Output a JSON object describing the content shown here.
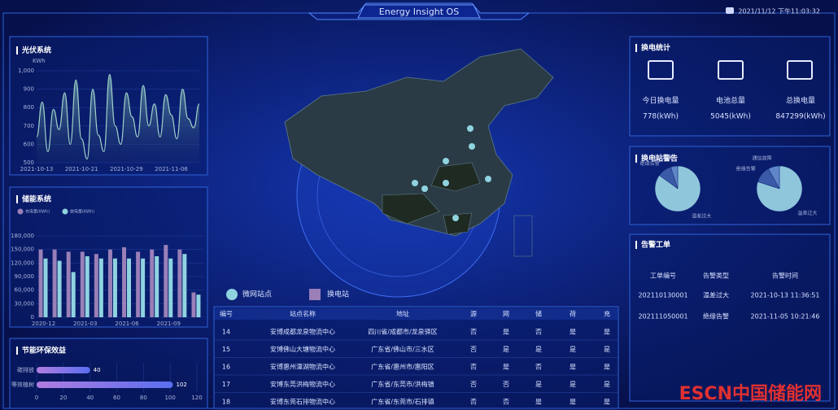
{
  "header": {
    "title": "Energy Insight OS",
    "datetime": "2021/11/12 下午11:03:32"
  },
  "pv_panel": {
    "title": "光伏系统",
    "chart": {
      "type": "line",
      "y_label": "KWh",
      "color": "#9fd0c8",
      "categories": [
        "2021-10-13",
        null,
        null,
        null,
        null,
        null,
        null,
        null,
        "2021-10-21",
        null,
        null,
        null,
        null,
        null,
        null,
        null,
        "2021-10-29",
        null,
        null,
        null,
        null,
        null,
        null,
        null,
        "2021-11-06",
        null,
        null,
        null,
        null,
        null
      ],
      "values": [
        640,
        830,
        560,
        790,
        680,
        880,
        600,
        950,
        630,
        520,
        900,
        650,
        560,
        980,
        700,
        600,
        880,
        750,
        640,
        920,
        700,
        820,
        640,
        870,
        760,
        630,
        900,
        740,
        690,
        820
      ],
      "ylim": [
        500,
        1000
      ],
      "yticks": [
        500,
        600,
        700,
        800,
        900,
        {
          "value": 1000,
          "label": "1,000"
        }
      ]
    }
  },
  "storage_panel": {
    "title": "储能系统",
    "chart": {
      "type": "bar",
      "categories": [
        "2020-12",
        null,
        null,
        "2021-03",
        null,
        null,
        "2021-06",
        null,
        null,
        "2021-09",
        null,
        null
      ],
      "series": [
        {
          "name": "充电量(KWh)",
          "color": "#9a7fb8",
          "values": [
            150000,
            150000,
            145000,
            145000,
            140000,
            150000,
            155000,
            145000,
            150000,
            160000,
            150000,
            55000
          ]
        },
        {
          "name": "放电量(KWh)",
          "color": "#8fd3e0",
          "values": [
            130000,
            125000,
            100000,
            135000,
            130000,
            130000,
            130000,
            130000,
            135000,
            130000,
            140000,
            50000
          ]
        }
      ],
      "ylim": [
        0,
        180000
      ],
      "yticks": [
        0,
        {
          "value": 30000,
          "label": "30,000"
        },
        {
          "value": 60000,
          "label": "60,000"
        },
        {
          "value": 90000,
          "label": "90,000"
        },
        {
          "value": 120000,
          "label": "120,000"
        },
        {
          "value": 150000,
          "label": "150,000"
        },
        {
          "value": 180000,
          "label": "180,000"
        }
      ]
    }
  },
  "eco_panel": {
    "title": "节能环保效益",
    "chart": {
      "type": "hbar",
      "color": "#7f6fe0",
      "categories": [
        "碳排放",
        "等效植树"
      ],
      "values": [
        40,
        102
      ],
      "xlim": [
        0,
        120
      ],
      "xticks": [
        0,
        20,
        40,
        60,
        80,
        100,
        120
      ]
    }
  },
  "swap_stats": {
    "title": "换电统计",
    "items": [
      {
        "label": "今日换电量",
        "value": "778(kWh)"
      },
      {
        "label": "电池总量",
        "value": "5045(kWh)"
      },
      {
        "label": "总换电量",
        "value": "847299(kWh)"
      }
    ]
  },
  "alarm_panel": {
    "title": "换电站警告",
    "chart": {
      "type": "pie",
      "pies": [
        {
          "labels": [
            "温差过大",
            "绝缘告警",
            "通信故障"
          ],
          "values": [
            85,
            10,
            5
          ],
          "colors": [
            "#8fc6dc",
            "#3a5aa8",
            "#5f86c8"
          ]
        },
        {
          "labels": [
            "温差过大",
            "绝缘告警",
            "通信故障"
          ],
          "values": [
            80,
            12,
            8
          ],
          "colors": [
            "#8fc6dc",
            "#3a5aa8",
            "#5f86c8"
          ]
        }
      ]
    }
  },
  "workorders": {
    "title": "告警工单",
    "columns": [
      "工单编号",
      "告警类型",
      "告警时间"
    ],
    "rows": [
      [
        "202110130001",
        "温差过大",
        "2021-10-13 11:36:51"
      ],
      [
        "202111050001",
        "绝缘告警",
        "2021-11-05 10:21:46"
      ]
    ]
  },
  "map_legend": [
    "微网站点",
    "换电站"
  ],
  "table": {
    "columns": [
      "编号",
      "站点名称",
      "地址",
      "源",
      "网",
      "储",
      "荷",
      "充"
    ],
    "rows": [
      [
        "14",
        "安博成都龙泉物流中心",
        "四川省/成都市/龙泉驿区",
        "否",
        "是",
        "否",
        "是",
        "是"
      ],
      [
        "15",
        "安博佛山大塘物流中心",
        "广东省/佛山市/三水区",
        "否",
        "是",
        "是",
        "是",
        "是"
      ],
      [
        "16",
        "安博惠州潼湖物流中心",
        "广东省/惠州市/惠阳区",
        "否",
        "是",
        "否",
        "是",
        "是"
      ],
      [
        "17",
        "安博东莞洪梅物流中心",
        "广东省/东莞市/洪梅镇",
        "否",
        "否",
        "是",
        "是",
        "是"
      ],
      [
        "18",
        "安博东莞石排物流中心",
        "广东省/东莞市/石排镇",
        "否",
        "否",
        "是",
        "是",
        "是"
      ]
    ]
  },
  "watermark": "ESCN中国储能网"
}
